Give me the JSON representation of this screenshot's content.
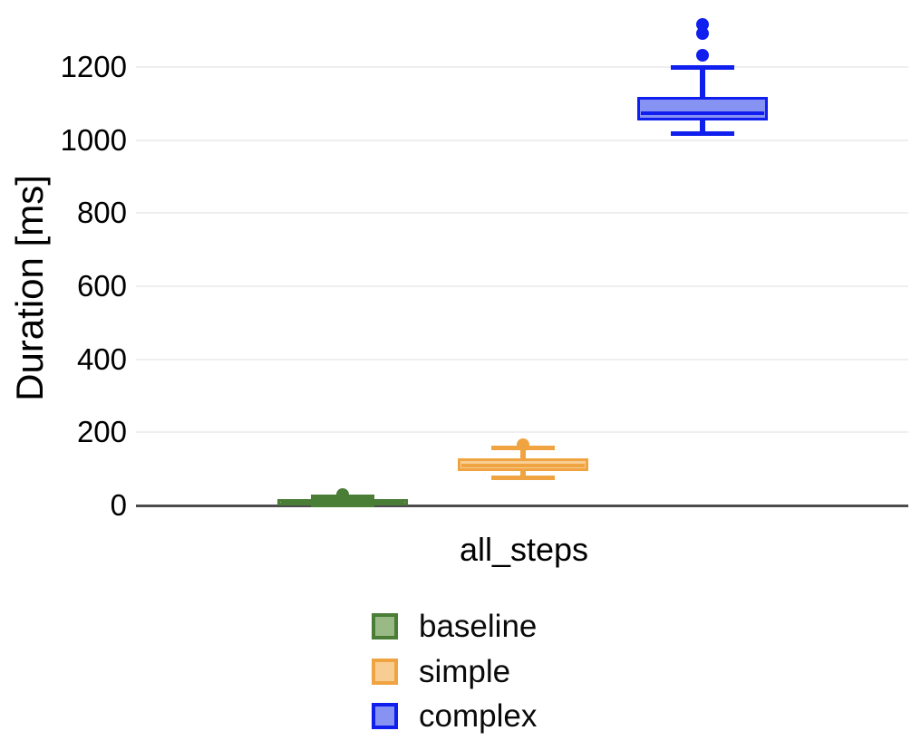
{
  "figure": {
    "background": "#ffffff",
    "grid_color": "#efefef",
    "axis_line_color": "#4c4c4c",
    "text_color": "#000000"
  },
  "chart_data": {
    "type": "boxplot",
    "title": "",
    "categories": [
      "all_steps"
    ],
    "xlabel": "",
    "ylabel": "Duration [ms]",
    "ylim": [
      0,
      1385
    ],
    "yticks": [
      0,
      200,
      400,
      600,
      800,
      1000,
      1200
    ],
    "grid": "horizontal",
    "legend_position": "bottom",
    "series": [
      {
        "name": "baseline",
        "stroke": "#4a7d36",
        "fill": "#9aba85",
        "box": {
          "whisker_low": 2,
          "q1": 7,
          "median": 12,
          "q3": 17,
          "whisker_high": 24,
          "outliers": [
            30
          ]
        }
      },
      {
        "name": "simple",
        "stroke": "#f0a441",
        "fill": "#f8cd92",
        "box": {
          "whisker_low": 76,
          "q1": 93,
          "median": 110,
          "q3": 130,
          "whisker_high": 157,
          "outliers": [
            166
          ]
        }
      },
      {
        "name": "complex",
        "stroke": "#101fee",
        "fill": "#8793f3",
        "box": {
          "whisker_low": 1017,
          "q1": 1053,
          "median": 1073,
          "q3": 1118,
          "whisker_high": 1200,
          "outliers": [
            1232,
            1291,
            1316
          ]
        }
      }
    ]
  }
}
